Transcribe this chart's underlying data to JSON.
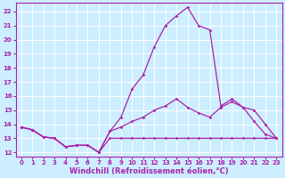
{
  "background_color": "#cceeff",
  "grid_color": "#ffffff",
  "line_color": "#aa22aa",
  "xlabel": "Windchill (Refroidissement éolien,°C)",
  "xlabel_fontsize": 6,
  "ylim": [
    11.7,
    22.6
  ],
  "xlim": [
    -0.5,
    23.5
  ],
  "yticks": [
    12,
    13,
    14,
    15,
    16,
    17,
    18,
    19,
    20,
    21,
    22
  ],
  "xticks": [
    0,
    1,
    2,
    3,
    4,
    5,
    6,
    7,
    8,
    9,
    10,
    11,
    12,
    13,
    14,
    15,
    16,
    17,
    18,
    19,
    20,
    21,
    22,
    23
  ],
  "tick_fontsize": 5,
  "series": [
    {
      "x": [
        0,
        1,
        2,
        3,
        4,
        5,
        6,
        7,
        8,
        9,
        10,
        11,
        12,
        13,
        14,
        15,
        16,
        17,
        18,
        19,
        20,
        21,
        22,
        23
      ],
      "y": [
        13.8,
        13.6,
        13.1,
        13.0,
        12.4,
        12.5,
        12.5,
        12.0,
        13.0,
        13.0,
        13.0,
        13.0,
        13.0,
        13.0,
        13.0,
        13.0,
        13.0,
        13.0,
        13.0,
        13.0,
        13.0,
        13.0,
        13.0,
        13.0
      ]
    },
    {
      "x": [
        0,
        1,
        2,
        3,
        4,
        5,
        6,
        7,
        8,
        9,
        10,
        11,
        12,
        13,
        14,
        15,
        16,
        17,
        18,
        19,
        20,
        21,
        22,
        23
      ],
      "y": [
        13.8,
        13.6,
        13.1,
        13.0,
        12.4,
        12.5,
        12.5,
        12.0,
        13.5,
        13.8,
        14.2,
        14.5,
        15.0,
        15.3,
        15.8,
        15.2,
        14.8,
        14.5,
        15.2,
        15.6,
        15.2,
        14.2,
        13.3,
        13.0
      ]
    },
    {
      "x": [
        0,
        1,
        2,
        3,
        4,
        5,
        6,
        7,
        8,
        9,
        10,
        11,
        12,
        13,
        14,
        15,
        16,
        17,
        18,
        19,
        20,
        21,
        22,
        23
      ],
      "y": [
        13.8,
        13.6,
        13.1,
        13.0,
        12.4,
        12.5,
        12.5,
        12.0,
        13.5,
        14.5,
        16.5,
        17.5,
        19.5,
        21.0,
        21.7,
        22.3,
        21.0,
        20.7,
        15.3,
        15.8,
        15.2,
        15.0,
        14.0,
        13.0
      ]
    }
  ]
}
